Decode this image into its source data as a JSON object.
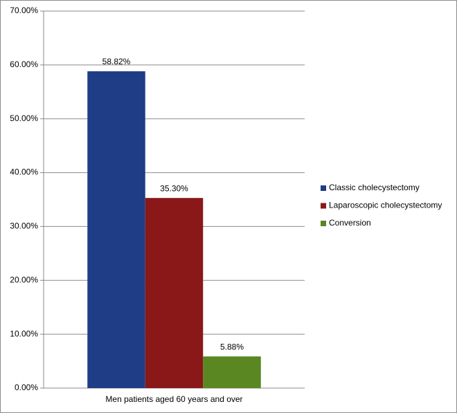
{
  "chart_data": {
    "type": "bar",
    "categories": [
      "Men patients aged 60 years and over"
    ],
    "series": [
      {
        "name": "Classic cholecystectomy",
        "color": "#1f3d86",
        "values": [
          58.82
        ],
        "value_labels": [
          "58.82%"
        ]
      },
      {
        "name": "Laparoscopic cholecystectomy",
        "color": "#8a1818",
        "values": [
          35.3
        ],
        "value_labels": [
          "35.30%"
        ]
      },
      {
        "name": "Conversion",
        "color": "#5a8721",
        "values": [
          5.88
        ],
        "value_labels": [
          "5.88%"
        ]
      }
    ],
    "ylim": [
      0,
      70
    ],
    "yticks": [
      {
        "value": 0,
        "label": "0.00%"
      },
      {
        "value": 10,
        "label": "10.00%"
      },
      {
        "value": 20,
        "label": "20.00%"
      },
      {
        "value": 30,
        "label": "30.00%"
      },
      {
        "value": 40,
        "label": "40.00%"
      },
      {
        "value": 50,
        "label": "50.00%"
      },
      {
        "value": 60,
        "label": "60.00%"
      },
      {
        "value": 70,
        "label": "70.00%"
      }
    ],
    "grid": true,
    "legend": "right"
  }
}
